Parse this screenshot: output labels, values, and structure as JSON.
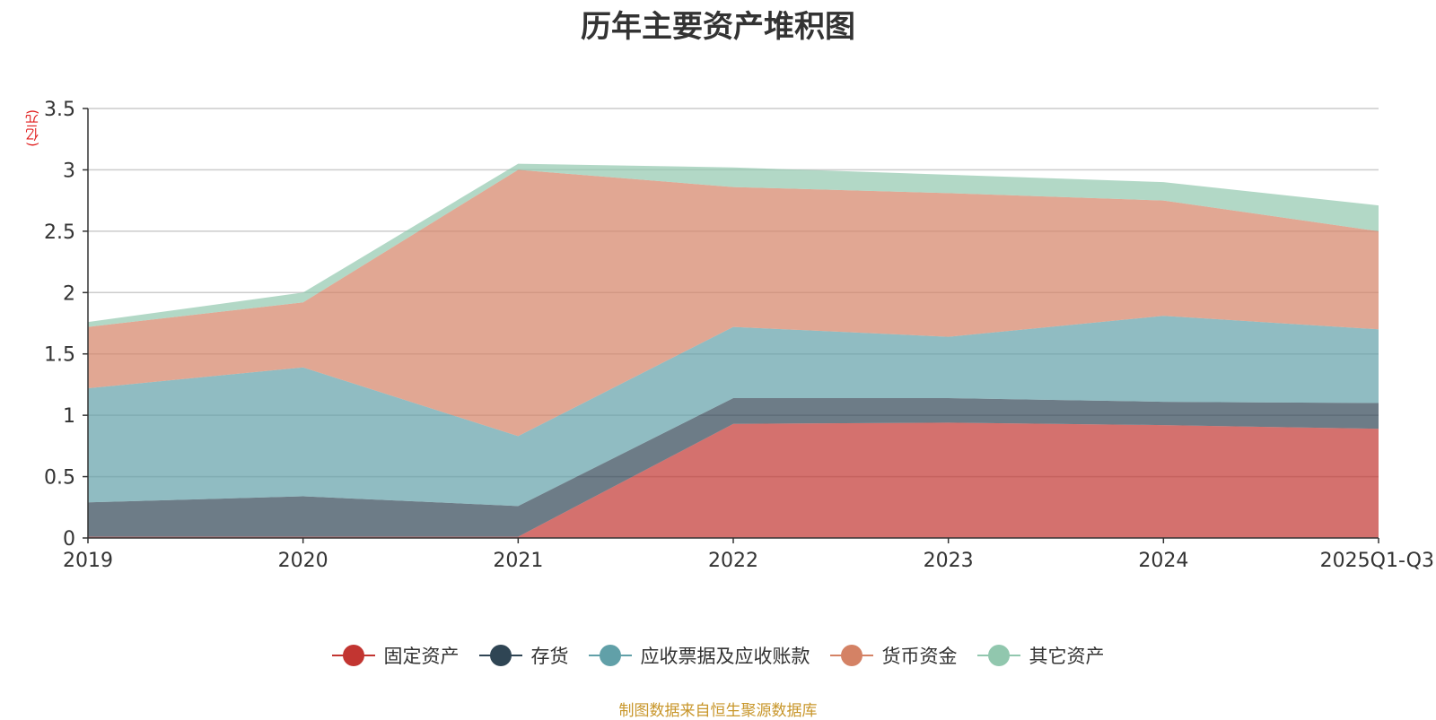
{
  "chart_data": {
    "type": "area",
    "stacked": true,
    "title": "历年主要资产堆积图",
    "unit": "(亿元)",
    "x": [
      "2019",
      "2020",
      "2021",
      "2022",
      "2023",
      "2024",
      "2025Q1-Q3"
    ],
    "ylim": [
      0,
      3.5
    ],
    "yticks": [
      "0",
      "0.5",
      "1",
      "1.5",
      "2",
      "2.5",
      "3",
      "3.5"
    ],
    "series": [
      {
        "name": "固定资产",
        "color": "#c23531",
        "values": [
          0.01,
          0.01,
          0.01,
          0.93,
          0.94,
          0.92,
          0.89
        ]
      },
      {
        "name": "存货",
        "color": "#2f4554",
        "values": [
          0.28,
          0.33,
          0.25,
          0.21,
          0.2,
          0.19,
          0.21
        ]
      },
      {
        "name": "应收票据及应收账款",
        "color": "#61a0a8",
        "values": [
          0.93,
          1.05,
          0.57,
          0.58,
          0.5,
          0.7,
          0.6
        ]
      },
      {
        "name": "货币资金",
        "color": "#d48265",
        "values": [
          0.5,
          0.53,
          2.17,
          1.14,
          1.17,
          0.94,
          0.8
        ]
      },
      {
        "name": "其它资产",
        "color": "#91c7ae",
        "values": [
          0.04,
          0.08,
          0.05,
          0.16,
          0.15,
          0.15,
          0.21
        ]
      }
    ],
    "legend_position": "bottom",
    "grid": true
  },
  "source_note": "制图数据来自恒生聚源数据库"
}
